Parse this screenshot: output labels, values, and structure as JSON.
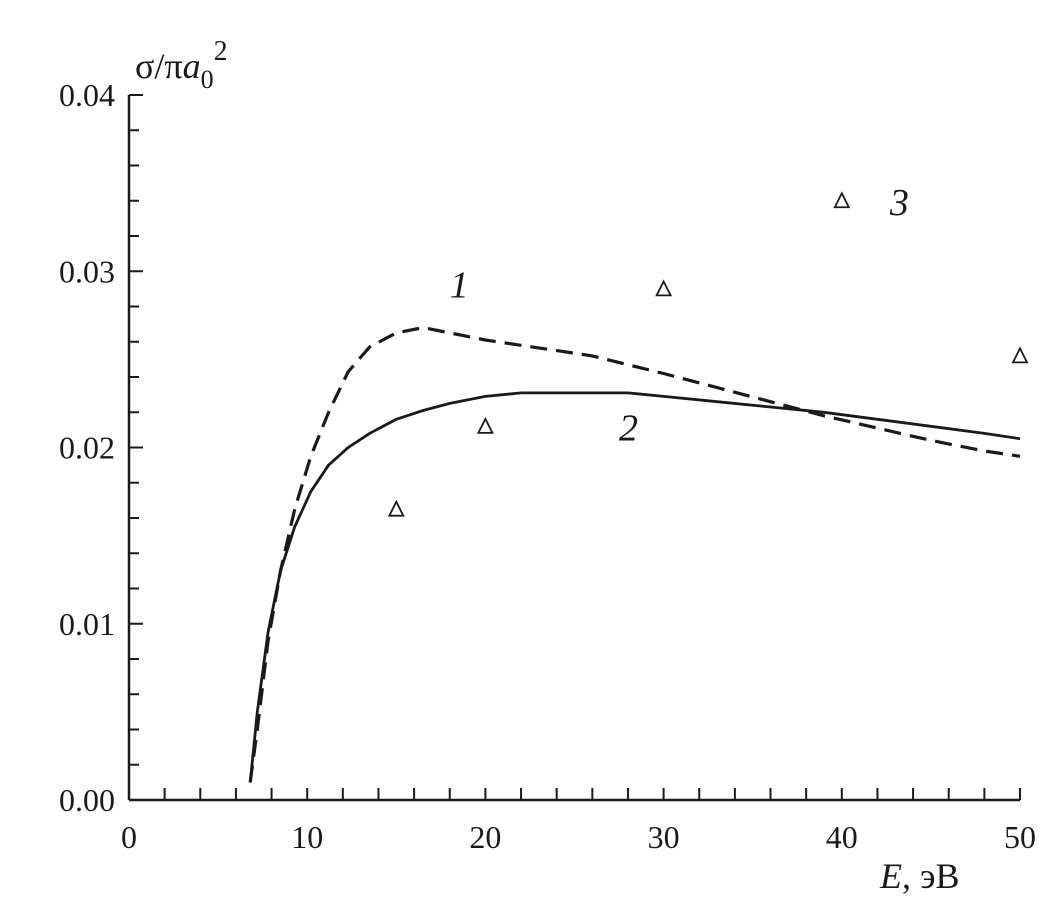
{
  "chart_data": {
    "type": "line",
    "x_min": 0,
    "x_max": 50,
    "y_min": 0.0,
    "y_max": 0.04,
    "x_ticks": [
      "0",
      "10",
      "20",
      "30",
      "40",
      "50"
    ],
    "x_tick_values": [
      0,
      10,
      20,
      30,
      40,
      50
    ],
    "y_ticks": [
      "0.00",
      "0.01",
      "0.02",
      "0.03",
      "0.04"
    ],
    "y_tick_values": [
      0.0,
      0.01,
      0.02,
      0.03,
      0.04
    ],
    "x_minor_step": 2,
    "y_minor_step": 0.002,
    "ylabel": {
      "main": "σ/π",
      "italic": "a",
      "sub": "0",
      "sup": "2"
    },
    "xlabel": {
      "italic": "E",
      "rest": ", эВ"
    },
    "series": [
      {
        "label": "1",
        "style": "dashed",
        "label_at": [
          18.0,
          0.0285
        ],
        "x": [
          6.8,
          7.2,
          7.8,
          8.5,
          9.3,
          10.2,
          11.2,
          12.3,
          13.5,
          15.0,
          16.5,
          18.0,
          20.0,
          22.0,
          24.0,
          26.0,
          28.0,
          30.0,
          33.0,
          36.0,
          39.0,
          42.0,
          45.0,
          48.0,
          50.0
        ],
        "y": [
          0.001,
          0.004,
          0.009,
          0.013,
          0.0165,
          0.0195,
          0.022,
          0.0243,
          0.0257,
          0.0265,
          0.0268,
          0.0265,
          0.0261,
          0.0258,
          0.0255,
          0.0252,
          0.0247,
          0.0242,
          0.0234,
          0.0226,
          0.0218,
          0.0211,
          0.0204,
          0.0198,
          0.0195
        ]
      },
      {
        "label": "2",
        "style": "solid",
        "label_at": [
          27.5,
          0.0204
        ],
        "x": [
          6.8,
          7.2,
          7.8,
          8.5,
          9.3,
          10.2,
          11.2,
          12.3,
          13.5,
          15.0,
          16.5,
          18.0,
          20.0,
          22.0,
          24.0,
          26.0,
          28.0,
          30.0,
          33.0,
          36.0,
          39.0,
          42.0,
          45.0,
          48.0,
          50.0
        ],
        "y": [
          0.001,
          0.005,
          0.0095,
          0.013,
          0.0155,
          0.0175,
          0.019,
          0.02,
          0.0208,
          0.0216,
          0.0221,
          0.0225,
          0.0229,
          0.0231,
          0.0231,
          0.0231,
          0.0231,
          0.0229,
          0.0226,
          0.0223,
          0.022,
          0.0216,
          0.0212,
          0.0208,
          0.0205
        ]
      },
      {
        "label": "3",
        "style": "triangles",
        "label_at": [
          42.7,
          0.0332
        ],
        "x": [
          15,
          20,
          30,
          40,
          50
        ],
        "y": [
          0.0165,
          0.0212,
          0.029,
          0.034,
          0.0252
        ]
      }
    ]
  }
}
